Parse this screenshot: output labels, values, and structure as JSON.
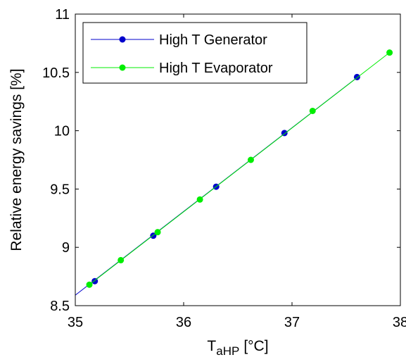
{
  "chart_data": {
    "type": "line",
    "title": "",
    "xlabel": "T",
    "xlabel_subscript": "aHP",
    "xlabel_unit": "[°C]",
    "ylabel": "Relative energy savings [%]",
    "xlim": [
      35,
      38
    ],
    "ylim": [
      8.5,
      11
    ],
    "xticks": [
      35,
      36,
      37,
      38
    ],
    "xtick_labels": [
      "35",
      "36",
      "37",
      "38"
    ],
    "yticks": [
      8.5,
      9,
      9.5,
      10,
      10.5,
      11
    ],
    "ytick_labels": [
      "8.5",
      "9",
      "9.5",
      "10",
      "10.5",
      "11"
    ],
    "grid": false,
    "legend_position": "top-left",
    "series": [
      {
        "name": "High T Generator",
        "color": "#0000cc",
        "line_x": [
          35.0,
          37.62
        ],
        "line_y": [
          8.59,
          10.47
        ],
        "x": [
          35.18,
          35.72,
          36.3,
          36.93,
          37.6
        ],
        "y": [
          8.71,
          9.1,
          9.52,
          9.98,
          10.46
        ]
      },
      {
        "name": "High T Evaporator",
        "color": "#00ee00",
        "line_x": [
          35.13,
          37.9
        ],
        "line_y": [
          8.68,
          10.67
        ],
        "x": [
          35.13,
          35.42,
          35.76,
          36.15,
          36.62,
          37.19,
          37.9
        ],
        "y": [
          8.68,
          8.89,
          9.13,
          9.41,
          9.75,
          10.17,
          10.67
        ]
      }
    ]
  }
}
